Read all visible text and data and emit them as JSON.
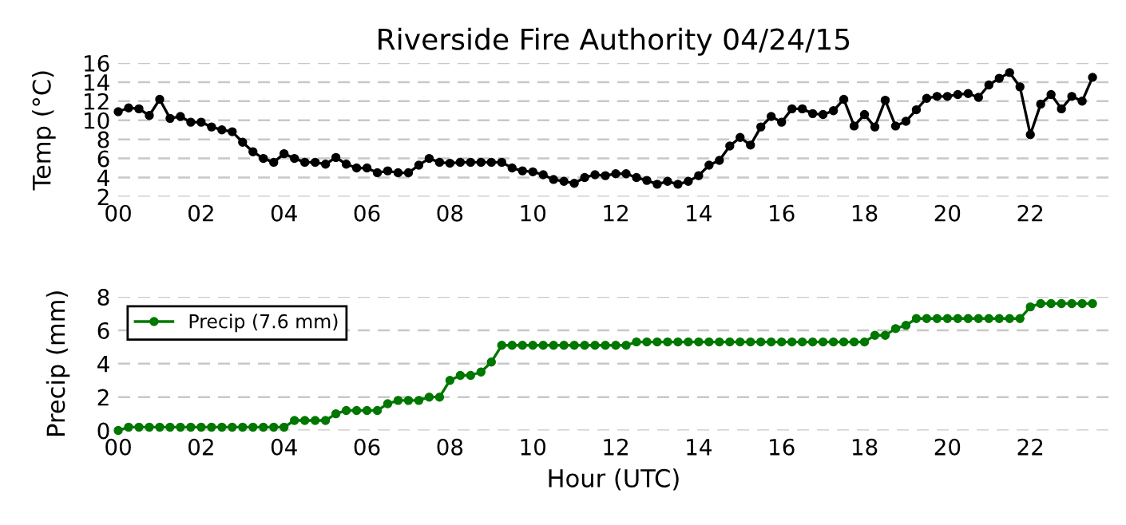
{
  "chart_data": [
    {
      "type": "line",
      "title": "Riverside Fire Authority 04/24/15",
      "ylabel": "Temp (°C)",
      "x": [
        0,
        0.25,
        0.5,
        0.75,
        1,
        1.25,
        1.5,
        1.75,
        2,
        2.25,
        2.5,
        2.75,
        3,
        3.25,
        3.5,
        3.75,
        4,
        4.25,
        4.5,
        4.75,
        5,
        5.25,
        5.5,
        5.75,
        6,
        6.25,
        6.5,
        6.75,
        7,
        7.25,
        7.5,
        7.75,
        8,
        8.25,
        8.5,
        8.75,
        9,
        9.25,
        9.5,
        9.75,
        10,
        10.25,
        10.5,
        10.75,
        11,
        11.25,
        11.5,
        11.75,
        12,
        12.25,
        12.5,
        12.75,
        13,
        13.25,
        13.5,
        13.75,
        14,
        14.25,
        14.5,
        14.75,
        15,
        15.25,
        15.5,
        15.75,
        16,
        16.25,
        16.5,
        16.75,
        17,
        17.25,
        17.5,
        17.75,
        18,
        18.25,
        18.5,
        18.75,
        19,
        19.25,
        19.5,
        19.75,
        20,
        20.25,
        20.5,
        20.75,
        21,
        21.25,
        21.5,
        21.75,
        22,
        22.25,
        22.5,
        22.75,
        23,
        23.25,
        23.5
      ],
      "series": [
        {
          "color": "#000000",
          "values": [
            10.9,
            11.3,
            11.2,
            10.5,
            12.2,
            10.2,
            10.4,
            9.8,
            9.8,
            9.3,
            9.0,
            8.8,
            7.7,
            6.7,
            6.0,
            5.6,
            6.5,
            6.0,
            5.6,
            5.6,
            5.4,
            6.1,
            5.4,
            5.0,
            5.0,
            4.5,
            4.7,
            4.5,
            4.5,
            5.3,
            6.0,
            5.6,
            5.5,
            5.6,
            5.6,
            5.6,
            5.6,
            5.6,
            5.0,
            4.7,
            4.6,
            4.3,
            3.8,
            3.6,
            3.4,
            4.0,
            4.3,
            4.2,
            4.4,
            4.4,
            4.0,
            3.7,
            3.3,
            3.6,
            3.3,
            3.6,
            4.2,
            5.3,
            5.8,
            7.3,
            8.2,
            7.4,
            9.3,
            10.4,
            9.8,
            11.2,
            11.2,
            10.7,
            10.6,
            11.0,
            12.2,
            9.4,
            10.6,
            9.3,
            12.1,
            9.4,
            9.9,
            11.1,
            12.3,
            12.5,
            12.5,
            12.7,
            12.8,
            12.4,
            13.7,
            14.4,
            15.0,
            13.5,
            8.5,
            11.7,
            12.7,
            11.2,
            12.5,
            12.0,
            14.5
          ]
        }
      ],
      "xlim": [
        0,
        23.9
      ],
      "xticks": [
        {
          "value": 0,
          "label": "00"
        },
        {
          "value": 2,
          "label": "02"
        },
        {
          "value": 4,
          "label": "04"
        },
        {
          "value": 6,
          "label": "06"
        },
        {
          "value": 8,
          "label": "08"
        },
        {
          "value": 10,
          "label": "10"
        },
        {
          "value": 12,
          "label": "12"
        },
        {
          "value": 14,
          "label": "14"
        },
        {
          "value": 16,
          "label": "16"
        },
        {
          "value": 18,
          "label": "18"
        },
        {
          "value": 20,
          "label": "20"
        },
        {
          "value": 22,
          "label": "22"
        }
      ],
      "ylim": [
        2,
        16
      ],
      "yticks": [
        2,
        4,
        6,
        8,
        10,
        12,
        14,
        16
      ],
      "grid": "y",
      "marker": "circle",
      "line_style": "solid",
      "legend": false
    },
    {
      "type": "line",
      "xlabel": "Hour (UTC)",
      "ylabel": "Precip (mm)",
      "x": [
        0,
        0.25,
        0.5,
        0.75,
        1,
        1.25,
        1.5,
        1.75,
        2,
        2.25,
        2.5,
        2.75,
        3,
        3.25,
        3.5,
        3.75,
        4,
        4.25,
        4.5,
        4.75,
        5,
        5.25,
        5.5,
        5.75,
        6,
        6.25,
        6.5,
        6.75,
        7,
        7.25,
        7.5,
        7.75,
        8,
        8.25,
        8.5,
        8.75,
        9,
        9.25,
        9.5,
        9.75,
        10,
        10.25,
        10.5,
        10.75,
        11,
        11.25,
        11.5,
        11.75,
        12,
        12.25,
        12.5,
        12.75,
        13,
        13.25,
        13.5,
        13.75,
        14,
        14.25,
        14.5,
        14.75,
        15,
        15.25,
        15.5,
        15.75,
        16,
        16.25,
        16.5,
        16.75,
        17,
        17.25,
        17.5,
        17.75,
        18,
        18.25,
        18.5,
        18.75,
        19,
        19.25,
        19.5,
        19.75,
        20,
        20.25,
        20.5,
        20.75,
        21,
        21.25,
        21.5,
        21.75,
        22,
        22.25,
        22.5,
        22.75,
        23,
        23.25,
        23.5
      ],
      "series": [
        {
          "name": "Precip (7.6 mm)",
          "color": "#007700",
          "values": [
            0,
            0.2,
            0.2,
            0.2,
            0.2,
            0.2,
            0.2,
            0.2,
            0.2,
            0.2,
            0.2,
            0.2,
            0.2,
            0.2,
            0.2,
            0.2,
            0.2,
            0.6,
            0.6,
            0.6,
            0.6,
            1.0,
            1.2,
            1.2,
            1.2,
            1.2,
            1.6,
            1.8,
            1.8,
            1.8,
            2.0,
            2.0,
            3.0,
            3.3,
            3.3,
            3.5,
            4.1,
            5.1,
            5.1,
            5.1,
            5.1,
            5.1,
            5.1,
            5.1,
            5.1,
            5.1,
            5.1,
            5.1,
            5.1,
            5.1,
            5.3,
            5.3,
            5.3,
            5.3,
            5.3,
            5.3,
            5.3,
            5.3,
            5.3,
            5.3,
            5.3,
            5.3,
            5.3,
            5.3,
            5.3,
            5.3,
            5.3,
            5.3,
            5.3,
            5.3,
            5.3,
            5.3,
            5.3,
            5.7,
            5.7,
            6.1,
            6.3,
            6.7,
            6.7,
            6.7,
            6.7,
            6.7,
            6.7,
            6.7,
            6.7,
            6.7,
            6.7,
            6.7,
            7.4,
            7.6,
            7.6,
            7.6,
            7.6,
            7.6,
            7.6
          ]
        }
      ],
      "xlim": [
        0,
        23.9
      ],
      "xticks": [
        {
          "value": 0,
          "label": "00"
        },
        {
          "value": 2,
          "label": "02"
        },
        {
          "value": 4,
          "label": "04"
        },
        {
          "value": 6,
          "label": "06"
        },
        {
          "value": 8,
          "label": "08"
        },
        {
          "value": 10,
          "label": "10"
        },
        {
          "value": 12,
          "label": "12"
        },
        {
          "value": 14,
          "label": "14"
        },
        {
          "value": 16,
          "label": "16"
        },
        {
          "value": 18,
          "label": "18"
        },
        {
          "value": 20,
          "label": "20"
        },
        {
          "value": 22,
          "label": "22"
        }
      ],
      "ylim": [
        0,
        8
      ],
      "yticks": [
        0,
        2,
        4,
        6,
        8
      ],
      "grid": "y",
      "marker": "circle",
      "line_style": "solid",
      "legend": "top left"
    }
  ]
}
